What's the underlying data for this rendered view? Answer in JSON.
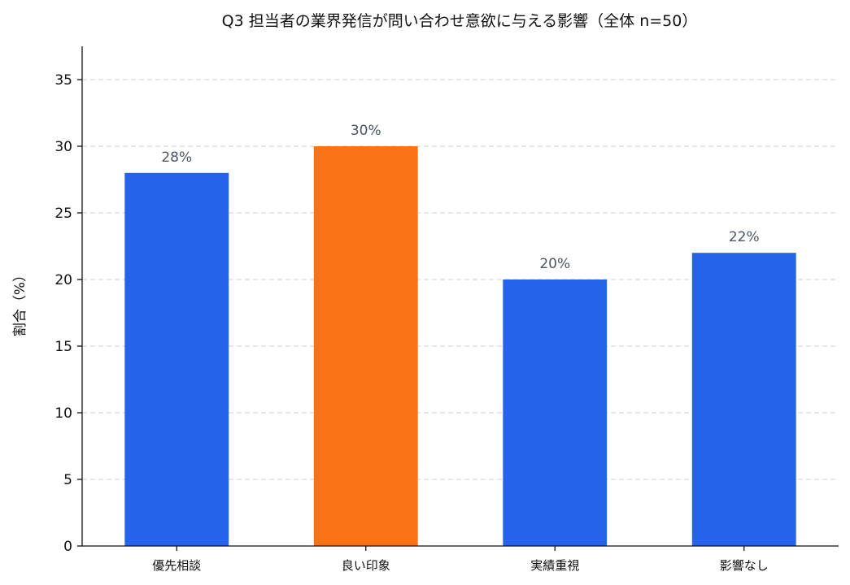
{
  "chart_data": {
    "type": "bar",
    "title": "Q3 担当者の業界発信が問い合わせ意欲に与える影響（全体 n=50）",
    "xlabel": "",
    "ylabel": "割合（%）",
    "categories": [
      "優先相談",
      "良い印象",
      "実績重視",
      "影響なし"
    ],
    "values": [
      28,
      30,
      20,
      22
    ],
    "data_labels": [
      "28%",
      "30%",
      "20%",
      "22%"
    ],
    "bar_colors": [
      "#2563eb",
      "#f97316",
      "#2563eb",
      "#2563eb"
    ],
    "ylim": [
      0,
      37.5
    ],
    "yticks": [
      0,
      5,
      10,
      15,
      20,
      25,
      30,
      35
    ],
    "ytick_labels": [
      "0",
      "5",
      "10",
      "15",
      "20",
      "25",
      "30",
      "35"
    ],
    "grid": "y-dashed",
    "legend": "none"
  }
}
